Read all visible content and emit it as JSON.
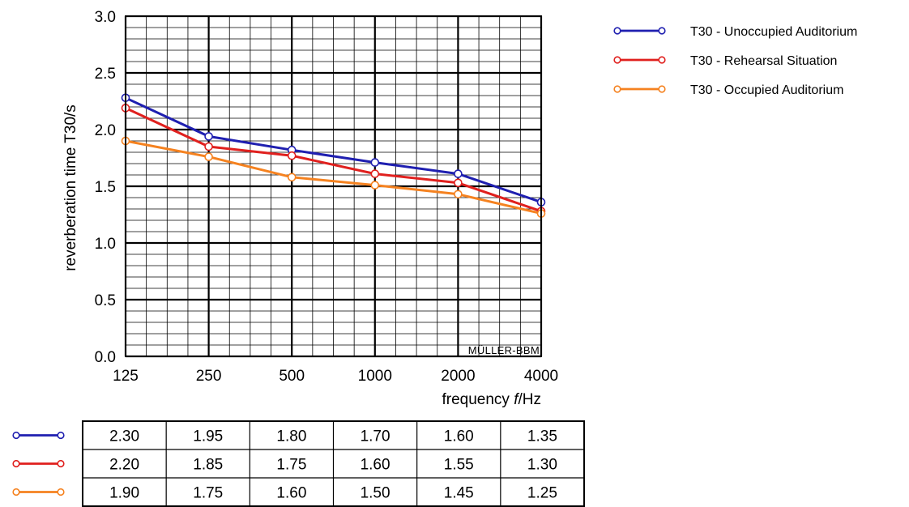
{
  "chart_data": {
    "type": "line",
    "categories": [
      "125",
      "250",
      "500",
      "1000",
      "2000",
      "4000"
    ],
    "ylim": [
      0,
      3.0
    ],
    "yticks": [
      "0.0",
      "0.5",
      "1.0",
      "1.5",
      "2.0",
      "2.5",
      "3.0"
    ],
    "ylabel": "reverberation time  T30/s",
    "xlabel_pre": "frequency ",
    "xlabel_var": "f",
    "xlabel_post": "/Hz",
    "grid": true,
    "legend_position": "right",
    "watermark": "MÜLLER-BBM",
    "series": [
      {
        "name": "T30 - Unoccupied Auditorium",
        "color": "#1f1fb0",
        "values": [
          2.28,
          1.94,
          1.82,
          1.71,
          1.61,
          1.36
        ],
        "table": [
          "2.30",
          "1.95",
          "1.80",
          "1.70",
          "1.60",
          "1.35"
        ]
      },
      {
        "name": "T30 - Rehearsal Situation",
        "color": "#e0201e",
        "values": [
          2.19,
          1.85,
          1.77,
          1.61,
          1.53,
          1.28
        ],
        "table": [
          "2.20",
          "1.85",
          "1.75",
          "1.60",
          "1.55",
          "1.30"
        ]
      },
      {
        "name": "T30 - Occupied Auditorium",
        "color": "#f58220",
        "values": [
          1.9,
          1.76,
          1.58,
          1.51,
          1.43,
          1.26
        ],
        "table": [
          "1.90",
          "1.75",
          "1.60",
          "1.50",
          "1.45",
          "1.25"
        ]
      }
    ]
  }
}
